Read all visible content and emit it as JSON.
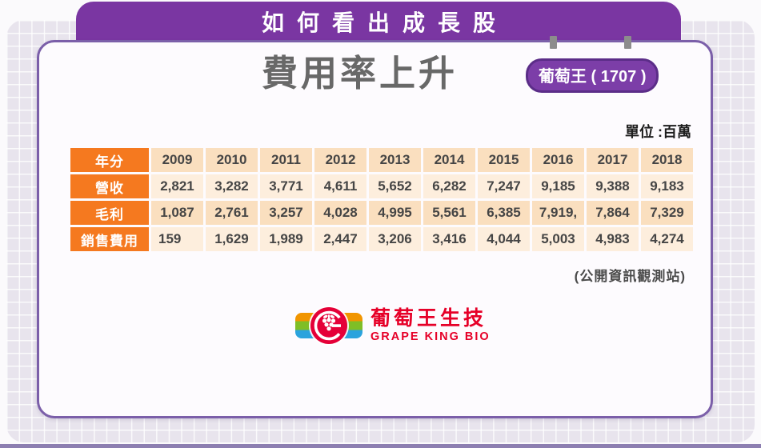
{
  "banner": {
    "title": "如何看出成長股"
  },
  "card": {
    "title": "費用率上升",
    "badge": "葡萄王 ( 1707 )",
    "unit_label": "單位 :百萬",
    "source": "(公開資訊觀測站)"
  },
  "table": {
    "header_label": "年分",
    "years": [
      "2009",
      "2010",
      "2011",
      "2012",
      "2013",
      "2014",
      "2015",
      "2016",
      "2017",
      "2018"
    ],
    "rows": [
      {
        "label": "營收",
        "values": [
          "2,821",
          "3,282",
          "3,771",
          "4,611",
          "5,652",
          "6,282",
          "7,247",
          "9,185",
          "9,388",
          "9,183"
        ]
      },
      {
        "label": "毛利",
        "values": [
          "1,087",
          "2,761",
          "3,257",
          "4,028",
          "4,995",
          "5,561",
          "6,385",
          "7,919,",
          "7,864",
          "7,329"
        ]
      },
      {
        "label": "銷售費用",
        "values": [
          "159",
          "1,629",
          "1,989",
          "2,447",
          "3,206",
          "3,416",
          "4,044",
          "5,003",
          "4,983",
          "4,274"
        ]
      }
    ]
  },
  "logo": {
    "company_zh": "葡萄王生技",
    "company_en": "GRAPE KING BIO"
  },
  "chart_data": {
    "type": "table",
    "title": "費用率上升",
    "subtitle": "葡萄王 (1707)",
    "unit": "百萬",
    "categories": [
      2009,
      2010,
      2011,
      2012,
      2013,
      2014,
      2015,
      2016,
      2017,
      2018
    ],
    "series": [
      {
        "name": "營收",
        "values": [
          2821,
          3282,
          3771,
          4611,
          5652,
          6282,
          7247,
          9185,
          9388,
          9183
        ]
      },
      {
        "name": "毛利",
        "values": [
          1087,
          2761,
          3257,
          4028,
          4995,
          5561,
          6385,
          7919,
          7864,
          7329
        ]
      },
      {
        "name": "銷售費用",
        "values": [
          159,
          1629,
          1989,
          2447,
          3206,
          3416,
          4044,
          5003,
          4983,
          4274
        ]
      }
    ],
    "source": "公開資訊觀測站"
  },
  "colors": {
    "banner_purple": "#7a36a2",
    "badge_purple": "#7c3ea8",
    "badge_border": "#5b2d88",
    "card_border": "#7b5fa9",
    "table_orange": "#f5791f",
    "row_dark_peach": "#fadfbf",
    "row_light_peach": "#fdeedd",
    "logo_red": "#e60028",
    "panel_lavender": "#e8e4ed"
  }
}
